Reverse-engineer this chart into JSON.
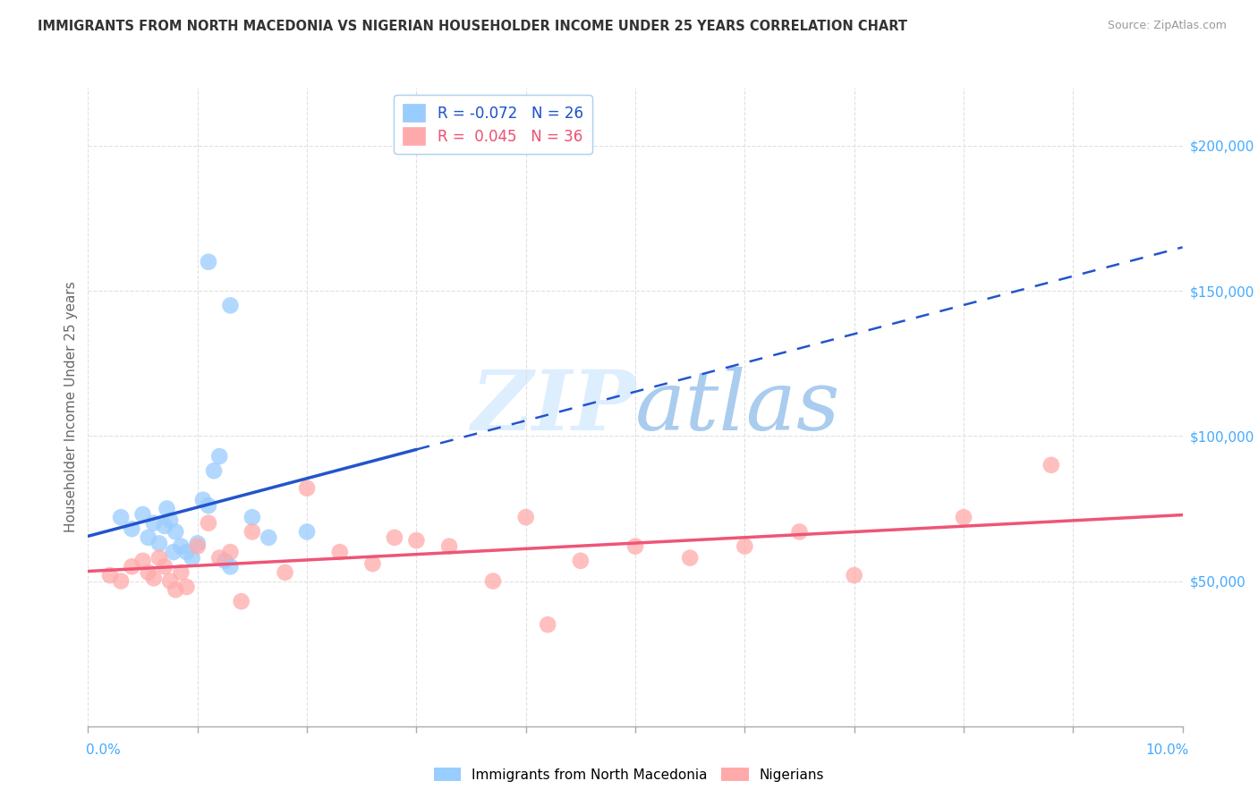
{
  "title": "IMMIGRANTS FROM NORTH MACEDONIA VS NIGERIAN HOUSEHOLDER INCOME UNDER 25 YEARS CORRELATION CHART",
  "source": "Source: ZipAtlas.com",
  "ylabel": "Householder Income Under 25 years",
  "legend_mac": "Immigrants from North Macedonia",
  "legend_nig": "Nigerians",
  "mac_R": "-0.072",
  "mac_N": "26",
  "nig_R": "0.045",
  "nig_N": "36",
  "xlim_min": 0.0,
  "xlim_max": 10.0,
  "ylim_min": 0,
  "ylim_max": 220000,
  "yticks": [
    50000,
    100000,
    150000,
    200000
  ],
  "background_color": "#ffffff",
  "grid_color": "#e0e0e0",
  "mac_color": "#99ccff",
  "nig_color": "#ffaaaa",
  "mac_line_color": "#2255cc",
  "nig_line_color": "#ee5577",
  "watermark_zip_color": "#ddeeff",
  "watermark_atlas_color": "#aabbdd",
  "mac_x": [
    0.3,
    0.4,
    0.5,
    0.55,
    0.6,
    0.65,
    0.7,
    0.72,
    0.75,
    0.78,
    0.8,
    0.85,
    0.9,
    0.95,
    1.0,
    1.05,
    1.1,
    1.15,
    1.2,
    1.25,
    1.3,
    1.5,
    1.65,
    2.0,
    1.1,
    1.3
  ],
  "mac_y": [
    72000,
    68000,
    73000,
    65000,
    70000,
    63000,
    69000,
    75000,
    71000,
    60000,
    67000,
    62000,
    60000,
    58000,
    63000,
    78000,
    76000,
    88000,
    93000,
    57000,
    55000,
    72000,
    65000,
    67000,
    160000,
    145000
  ],
  "nig_x": [
    0.2,
    0.3,
    0.4,
    0.5,
    0.55,
    0.6,
    0.65,
    0.7,
    0.75,
    0.8,
    0.85,
    0.9,
    1.0,
    1.1,
    1.2,
    1.3,
    1.5,
    1.8,
    2.0,
    2.3,
    2.6,
    3.0,
    3.3,
    3.7,
    4.0,
    4.5,
    5.0,
    5.5,
    6.0,
    6.5,
    7.0,
    8.0,
    8.8,
    1.4,
    2.8,
    4.2
  ],
  "nig_y": [
    52000,
    50000,
    55000,
    57000,
    53000,
    51000,
    58000,
    55000,
    50000,
    47000,
    53000,
    48000,
    62000,
    70000,
    58000,
    60000,
    67000,
    53000,
    82000,
    60000,
    56000,
    64000,
    62000,
    50000,
    72000,
    57000,
    62000,
    58000,
    62000,
    67000,
    52000,
    72000,
    90000,
    43000,
    65000,
    35000
  ],
  "mac_line_x_solid_end": 3.0,
  "nig_line_solid": true
}
